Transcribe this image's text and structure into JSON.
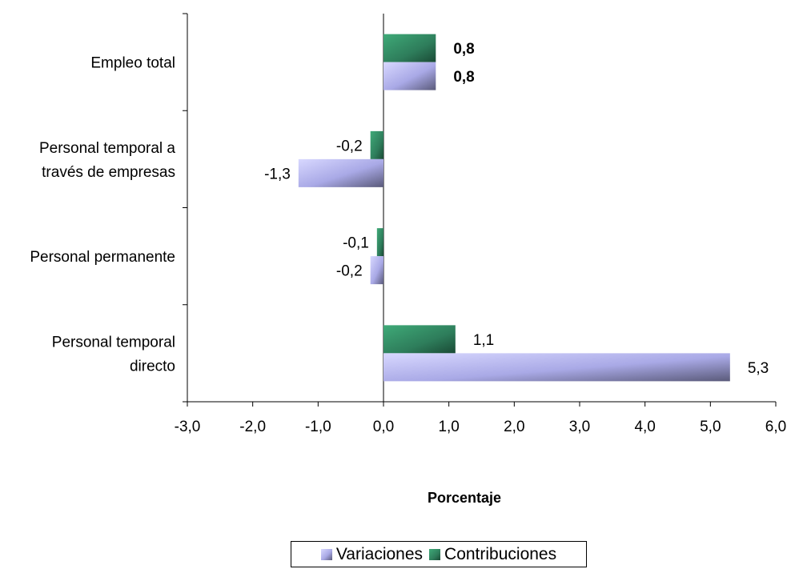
{
  "chart_data": {
    "type": "bar",
    "orientation": "horizontal",
    "categories": [
      "Empleo total",
      "Personal temporal a través de empresas",
      "Personal permanente",
      "Personal temporal directo"
    ],
    "category_lines": [
      [
        "Empleo total"
      ],
      [
        "Personal temporal a",
        "través de empresas"
      ],
      [
        "Personal permanente"
      ],
      [
        "Personal temporal",
        "directo"
      ]
    ],
    "series": [
      {
        "name": "Variaciones",
        "values": [
          0.8,
          -1.3,
          -0.2,
          5.3
        ],
        "labels": [
          "0,8",
          "-1,3",
          "-0,2",
          "5,3"
        ],
        "color": "#a9a9e6"
      },
      {
        "name": "Contribuciones",
        "values": [
          0.8,
          -0.2,
          -0.1,
          1.1
        ],
        "labels": [
          "0,8",
          "-0,2",
          "-0,1",
          "1,1"
        ],
        "color": "#2e7d5b"
      }
    ],
    "bold_label_categories": [
      0
    ],
    "xlim": [
      -3,
      6
    ],
    "xticks": [
      -3,
      -2,
      -1,
      0,
      1,
      2,
      3,
      4,
      5,
      6
    ],
    "xtick_labels": [
      "-3,0",
      "-2,0",
      "-1,0",
      "0,0",
      "1,0",
      "2,0",
      "3,0",
      "4,0",
      "5,0",
      "6,0"
    ],
    "xlabel": "Porcentaje",
    "grid": false,
    "legend_position": "bottom"
  }
}
